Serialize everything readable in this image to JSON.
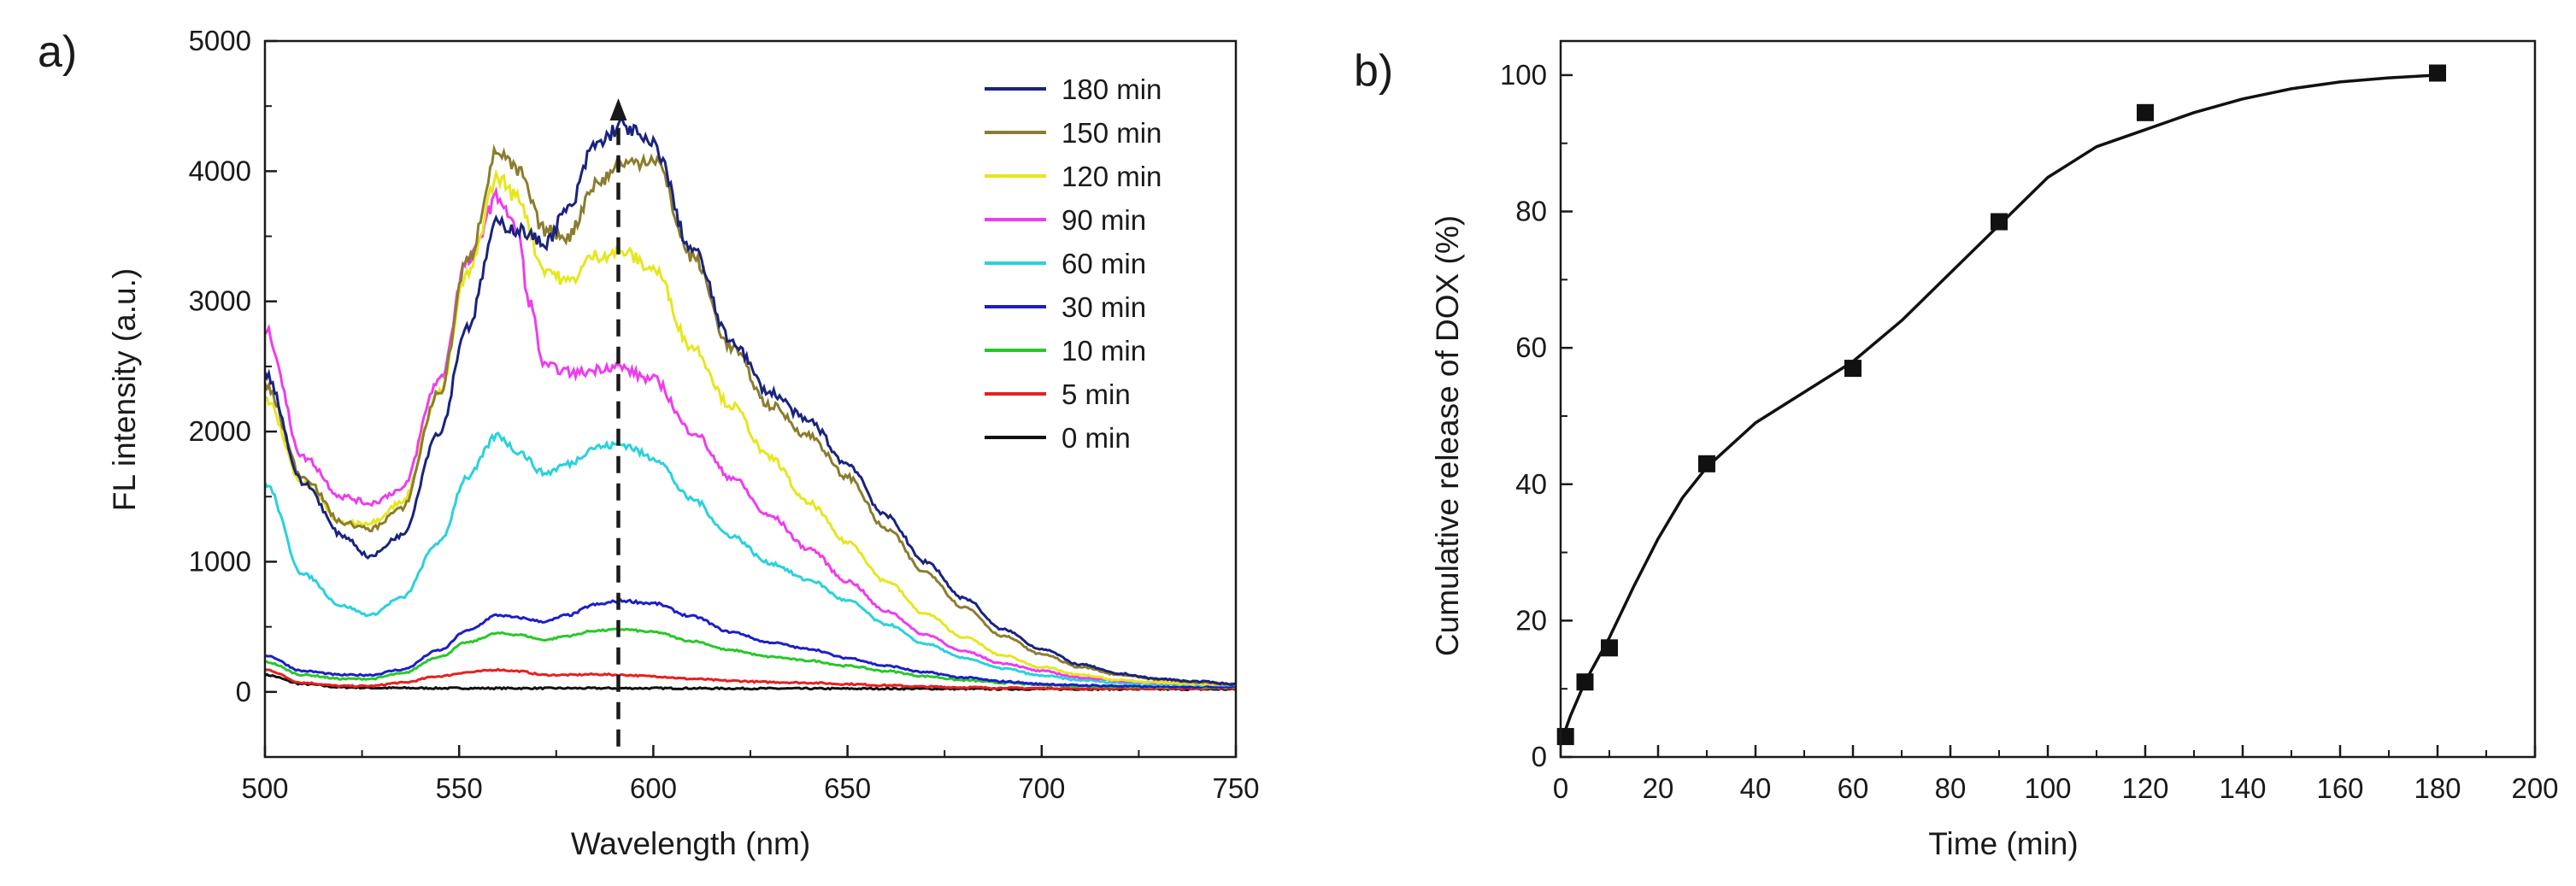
{
  "chart_data": [
    {
      "panel": "a)",
      "type": "line",
      "xlabel": "Wavelength (nm)",
      "ylabel": "FL intensity (a.u.)",
      "xlim": [
        500,
        750
      ],
      "ylim": [
        -500,
        5000
      ],
      "xticks": [
        500,
        550,
        600,
        650,
        700,
        750
      ],
      "yticks": [
        0,
        1000,
        2000,
        3000,
        4000,
        5000
      ],
      "marker_line": {
        "x": 591,
        "y_from": -420,
        "y_to": 4560,
        "style": "dashed-arrow"
      },
      "series": [
        {
          "name": "180 min",
          "color": "#1a237e",
          "x": [
            500,
            510,
            520,
            527,
            535,
            545,
            552,
            560,
            565,
            572,
            578,
            585,
            592,
            600,
            610,
            620,
            630,
            640,
            650,
            660,
            670,
            680,
            690,
            700,
            710,
            720,
            730,
            740,
            750
          ],
          "values": [
            2450,
            1600,
            1200,
            1040,
            1200,
            2000,
            2800,
            3600,
            3550,
            3450,
            3700,
            4200,
            4350,
            4200,
            3400,
            2700,
            2300,
            2080,
            1750,
            1350,
            1000,
            720,
            480,
            330,
            210,
            140,
            100,
            80,
            60
          ]
        },
        {
          "name": "150 min",
          "color": "#8b7d2e",
          "x": [
            500,
            510,
            520,
            527,
            535,
            545,
            552,
            560,
            565,
            572,
            578,
            585,
            592,
            600,
            610,
            620,
            630,
            640,
            650,
            660,
            670,
            680,
            690,
            700,
            710,
            720,
            730,
            740,
            750
          ],
          "values": [
            2350,
            1650,
            1300,
            1250,
            1400,
            2300,
            3300,
            4150,
            4000,
            3550,
            3500,
            3900,
            4050,
            4100,
            3350,
            2650,
            2200,
            1970,
            1650,
            1250,
            920,
            650,
            430,
            290,
            190,
            130,
            95,
            75,
            60
          ]
        },
        {
          "name": "120 min",
          "color": "#e6e61e",
          "x": [
            500,
            510,
            520,
            527,
            535,
            545,
            552,
            560,
            565,
            572,
            578,
            585,
            592,
            600,
            610,
            620,
            630,
            640,
            650,
            660,
            670,
            680,
            690,
            700,
            710,
            720,
            730,
            740,
            750
          ],
          "values": [
            2250,
            1600,
            1300,
            1300,
            1450,
            2300,
            3200,
            3950,
            3800,
            3250,
            3150,
            3350,
            3380,
            3250,
            2650,
            2200,
            1800,
            1450,
            1150,
            850,
            600,
            420,
            280,
            190,
            130,
            90,
            70,
            60,
            55
          ]
        },
        {
          "name": "90 min",
          "color": "#ee3cee",
          "x": [
            500,
            510,
            520,
            527,
            535,
            545,
            552,
            560,
            565,
            568,
            572,
            580,
            590,
            600,
            610,
            620,
            630,
            640,
            650,
            660,
            670,
            680,
            690,
            700,
            710,
            720,
            730,
            740,
            750
          ],
          "values": [
            2780,
            1800,
            1500,
            1450,
            1550,
            2400,
            3300,
            3800,
            3550,
            3000,
            2500,
            2450,
            2500,
            2400,
            2000,
            1650,
            1350,
            1100,
            850,
            620,
            440,
            310,
            220,
            160,
            110,
            85,
            70,
            60,
            55
          ]
        },
        {
          "name": "60 min",
          "color": "#28d2dc",
          "x": [
            500,
            510,
            520,
            527,
            535,
            545,
            552,
            560,
            565,
            572,
            578,
            585,
            592,
            600,
            610,
            620,
            630,
            640,
            650,
            660,
            670,
            680,
            690,
            700,
            710,
            720,
            730,
            740,
            750
          ],
          "values": [
            1600,
            900,
            660,
            590,
            720,
            1150,
            1650,
            1970,
            1850,
            1680,
            1750,
            1880,
            1900,
            1800,
            1480,
            1200,
            990,
            860,
            700,
            520,
            370,
            260,
            180,
            125,
            90,
            70,
            60,
            55,
            50
          ]
        },
        {
          "name": "30 min",
          "color": "#1e1ec8",
          "x": [
            500,
            510,
            520,
            527,
            535,
            545,
            552,
            560,
            565,
            572,
            578,
            585,
            592,
            600,
            610,
            620,
            630,
            640,
            650,
            660,
            670,
            680,
            690,
            700,
            710,
            720,
            730,
            740,
            750
          ],
          "values": [
            280,
            160,
            130,
            130,
            170,
            320,
            470,
            590,
            570,
            540,
            590,
            670,
            700,
            680,
            580,
            460,
            380,
            330,
            260,
            200,
            150,
            110,
            80,
            60,
            50,
            45,
            40,
            40,
            40
          ]
        },
        {
          "name": "10 min",
          "color": "#28c828",
          "x": [
            500,
            510,
            520,
            527,
            535,
            545,
            552,
            560,
            565,
            572,
            578,
            585,
            592,
            600,
            610,
            620,
            630,
            640,
            650,
            660,
            670,
            680,
            690,
            700,
            710,
            720,
            730,
            740,
            750
          ],
          "values": [
            230,
            130,
            100,
            100,
            140,
            270,
            380,
            450,
            440,
            400,
            430,
            470,
            480,
            460,
            390,
            320,
            270,
            240,
            200,
            160,
            120,
            90,
            70,
            55,
            45,
            40,
            38,
            36,
            35
          ]
        },
        {
          "name": "5 min",
          "color": "#e62020",
          "x": [
            500,
            510,
            520,
            527,
            535,
            545,
            552,
            560,
            565,
            572,
            578,
            585,
            592,
            600,
            610,
            620,
            630,
            640,
            650,
            660,
            670,
            680,
            690,
            700,
            710,
            720,
            730,
            740,
            750
          ],
          "values": [
            170,
            70,
            45,
            45,
            70,
            120,
            150,
            170,
            160,
            130,
            130,
            135,
            130,
            120,
            100,
            85,
            75,
            70,
            60,
            50,
            40,
            35,
            30,
            28,
            25,
            25,
            25,
            25,
            25
          ]
        },
        {
          "name": "0 min",
          "color": "#111111",
          "x": [
            500,
            510,
            520,
            530,
            550,
            575,
            600,
            625,
            650,
            700,
            750
          ],
          "values": [
            130,
            60,
            35,
            30,
            28,
            28,
            28,
            26,
            25,
            22,
            20
          ]
        }
      ]
    },
    {
      "panel": "b)",
      "type": "scatter",
      "xlabel": "Time (min)",
      "ylabel": "Cumulative release of DOX (%)",
      "xlim": [
        0,
        200
      ],
      "ylim": [
        0,
        105
      ],
      "xticks": [
        0,
        20,
        40,
        60,
        80,
        100,
        120,
        140,
        160,
        180,
        200
      ],
      "yticks": [
        0,
        20,
        40,
        60,
        80,
        100
      ],
      "points": {
        "x": [
          1,
          5,
          10,
          30,
          60,
          90,
          120,
          180
        ],
        "y": [
          3,
          11,
          16,
          43,
          57,
          78.5,
          94.5,
          100.3
        ]
      },
      "fit_curve": {
        "x": [
          0,
          2,
          5,
          10,
          15,
          20,
          25,
          30,
          40,
          50,
          60,
          70,
          80,
          90,
          100,
          110,
          120,
          130,
          140,
          150,
          160,
          170,
          180
        ],
        "y": [
          2,
          6,
          11,
          17.5,
          25,
          32,
          38,
          42.5,
          49,
          53.5,
          58,
          64,
          71,
          78,
          85,
          89.5,
          92,
          94.5,
          96.5,
          98,
          99,
          99.6,
          100
        ]
      }
    }
  ]
}
